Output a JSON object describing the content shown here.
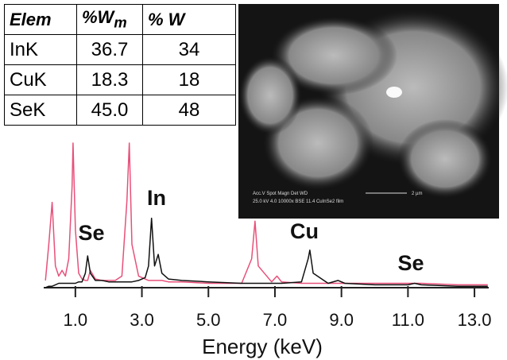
{
  "table": {
    "header": [
      {
        "text": "Elem"
      },
      {
        "text": "%W",
        "sub": "m"
      },
      {
        "text": "% W"
      }
    ],
    "rows": [
      [
        "InK",
        "36.7",
        "34"
      ],
      [
        "CuK",
        "18.3",
        "18"
      ],
      [
        "SeK",
        "45.0",
        "48"
      ]
    ]
  },
  "sem": {
    "labels": [
      "Acc.V  Spot Magn   Det  WD",
      "25.0 kV 4.0  10000x  BSE 11.4  CuInSe2 film",
      "2 µm"
    ]
  },
  "chart_data": {
    "type": "line",
    "xlabel": "Energy (keV)",
    "x": [
      0.1,
      0.2,
      0.3,
      0.4,
      0.5,
      0.6,
      0.7,
      0.8,
      0.9,
      0.93,
      1.0,
      1.1,
      1.2,
      1.3,
      1.37,
      1.45,
      1.6,
      1.8,
      2.0,
      2.2,
      2.4,
      2.55,
      2.62,
      2.7,
      2.9,
      3.1,
      3.2,
      3.29,
      3.38,
      3.49,
      3.6,
      3.8,
      4.2,
      5.0,
      6.0,
      6.3,
      6.4,
      6.5,
      6.9,
      7.06,
      7.2,
      7.8,
      8.0,
      8.05,
      8.15,
      8.6,
      8.9,
      9.1,
      10.0,
      11.0,
      11.2,
      11.4,
      12.5,
      13.4
    ],
    "series": [
      {
        "color": "#e8507a",
        "values": [
          5,
          30,
          59,
          15,
          8,
          12,
          8,
          20,
          70,
          100,
          40,
          10,
          6,
          5,
          5,
          12,
          6,
          5,
          5,
          5,
          8,
          60,
          100,
          30,
          8,
          6,
          5,
          5,
          5,
          5,
          5,
          4,
          4,
          3,
          3,
          20,
          46,
          15,
          4,
          8,
          4,
          3,
          3,
          3,
          3,
          3,
          3,
          3,
          3,
          3,
          3,
          3,
          2,
          2
        ]
      },
      {
        "color": "#111111",
        "values": [
          0,
          1,
          1,
          2,
          3,
          3,
          3,
          3,
          3,
          3,
          3,
          4,
          4,
          10,
          22,
          10,
          5,
          5,
          4,
          4,
          4,
          4,
          4,
          4,
          5,
          7,
          15,
          48,
          15,
          23,
          10,
          6,
          5,
          4,
          3,
          3,
          3,
          3,
          3,
          3,
          3,
          4,
          20,
          26,
          10,
          3,
          5,
          3,
          2,
          2,
          3,
          2,
          1,
          1
        ]
      }
    ],
    "annotations": [
      "Se",
      "In",
      "Cu",
      "Se"
    ],
    "xlim": [
      0,
      13.5
    ],
    "ylim": [
      0,
      100
    ],
    "xticks": [
      {
        "value": 1,
        "label": "1.0"
      },
      {
        "value": 3,
        "label": "3.0"
      },
      {
        "value": 5,
        "label": "5.0"
      },
      {
        "value": 7,
        "label": "7.0"
      },
      {
        "value": 9,
        "label": "9.0"
      },
      {
        "value": 11,
        "label": "11.0"
      },
      {
        "value": 13,
        "label": "13.0"
      }
    ],
    "grid": false
  }
}
